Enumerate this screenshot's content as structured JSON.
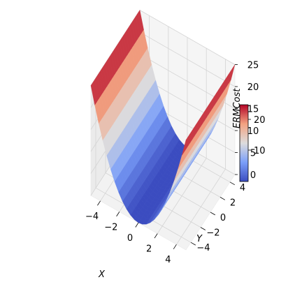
{
  "chart_data": {
    "type": "surface3d",
    "function": "ERMCost",
    "x": {
      "label": "X",
      "ticks": [
        "−4",
        "−2",
        "0",
        "2",
        "4"
      ],
      "range": [
        -5,
        5
      ]
    },
    "y": {
      "label": "Y",
      "ticks": [
        "−4",
        "−2",
        "0",
        "2",
        "4"
      ],
      "range": [
        -5,
        5
      ]
    },
    "z": {
      "label": "ERMCost",
      "ticks": [
        "0",
        "5",
        "10",
        "15",
        "20",
        "25"
      ],
      "range": [
        0,
        25
      ]
    },
    "colormap": "coolwarm",
    "colorbar": {
      "ticks": [
        "10",
        "20"
      ],
      "range": [
        0.4,
        25
      ]
    },
    "surface_shape": "valley along Y, rising steeply toward |X| = 5 (z ≈ x²)"
  }
}
